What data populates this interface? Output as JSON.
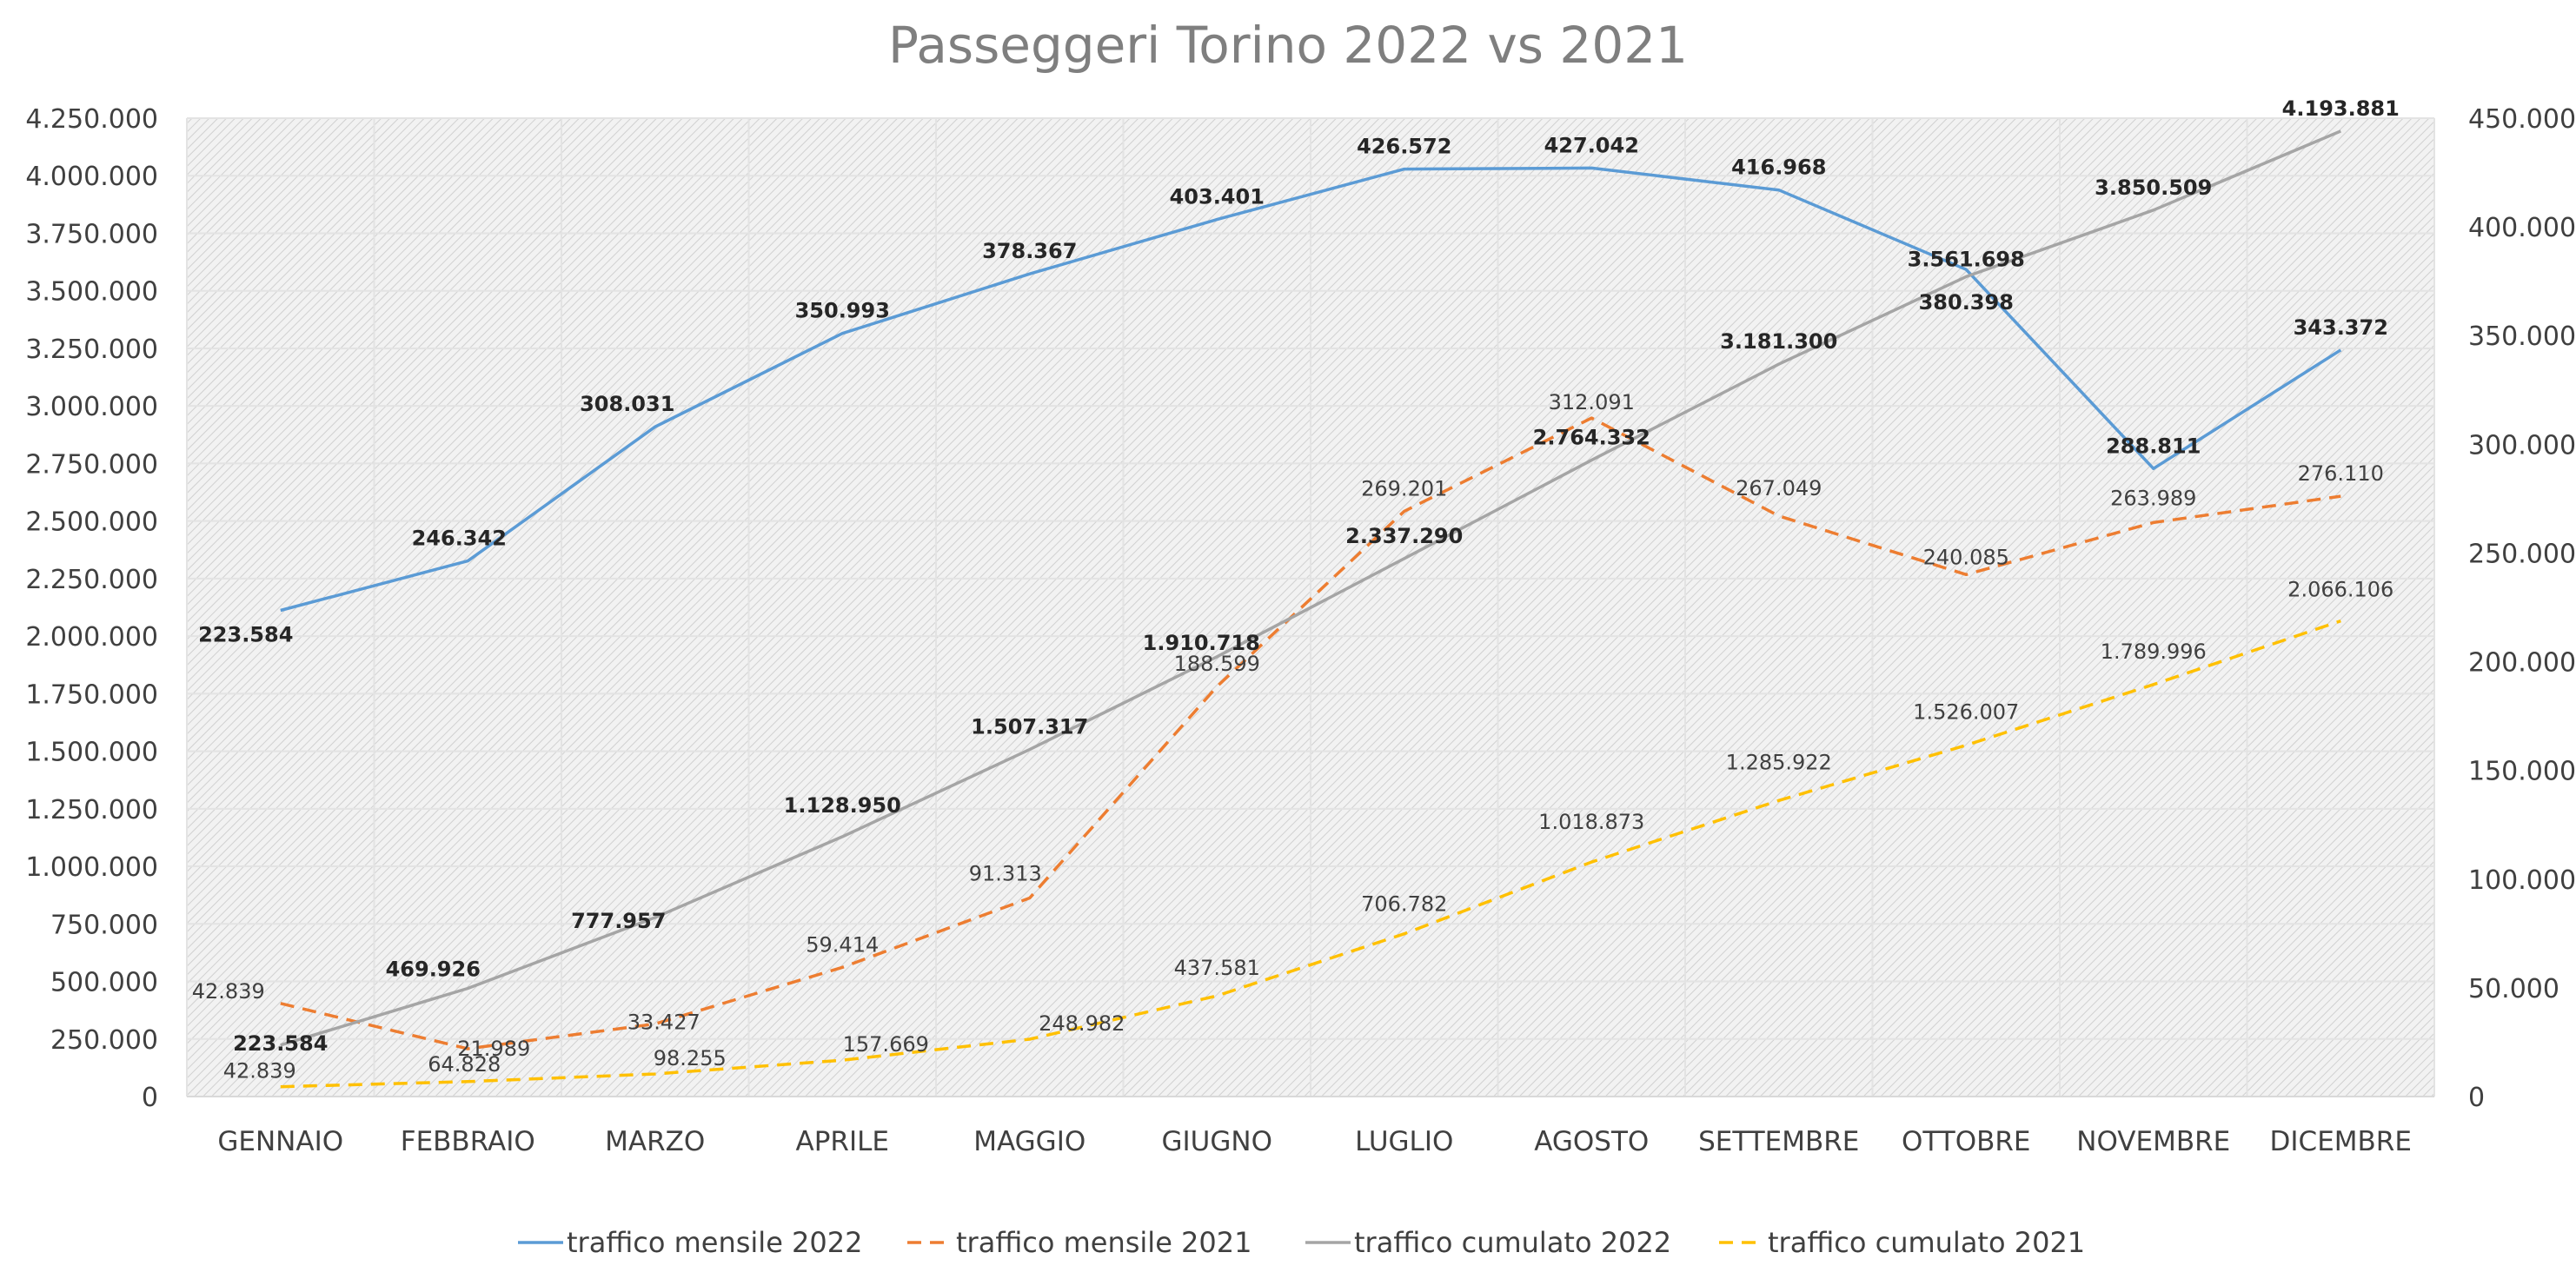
{
  "chart_data": {
    "type": "line",
    "title": "Passeggeri Torino 2022 vs 2021",
    "categories": [
      "GENNAIO",
      "FEBBRAIO",
      "MARZO",
      "APRILE",
      "MAGGIO",
      "GIUGNO",
      "LUGLIO",
      "AGOSTO",
      "SETTEMBRE",
      "OTTOBRE",
      "NOVEMBRE",
      "DICEMBRE"
    ],
    "y_left": {
      "min": 0,
      "max": 4250000,
      "step": 250000,
      "tick_labels": [
        "0",
        "250.000",
        "500.000",
        "750.000",
        "1.000.000",
        "1.250.000",
        "1.500.000",
        "1.750.000",
        "2.000.000",
        "2.250.000",
        "2.500.000",
        "2.750.000",
        "3.000.000",
        "3.250.000",
        "3.500.000",
        "3.750.000",
        "4.000.000",
        "4.250.000"
      ]
    },
    "y_right": {
      "min": 0,
      "max": 450000,
      "step": 50000,
      "tick_labels": [
        "0",
        "50.000",
        "100.000",
        "150.000",
        "200.000",
        "250.000",
        "300.000",
        "350.000",
        "400.000",
        "450.000"
      ]
    },
    "grid": true,
    "legend_position": "bottom",
    "series": [
      {
        "name": "traffico mensile 2022",
        "axis": "right",
        "style": "solid",
        "color": "#5b9bd5",
        "values": [
          223584,
          246342,
          308031,
          350993,
          378367,
          403401,
          426572,
          427042,
          416968,
          380398,
          288811,
          343372
        ],
        "labels": [
          "223.584",
          "246.342",
          "308.031",
          "350.993",
          "378.367",
          "403.401",
          "426.572",
          "427.042",
          "416.968",
          "380.398",
          "288.811",
          "343.372"
        ]
      },
      {
        "name": "traffico mensile 2021",
        "axis": "right",
        "style": "dashed",
        "color": "#ed7d31",
        "values": [
          42839,
          21989,
          33427,
          59414,
          91313,
          188599,
          269201,
          312091,
          267049,
          240085,
          263989,
          276110
        ],
        "labels": [
          "42.839",
          "21.989",
          "33.427",
          "59.414",
          "91.313",
          "188.599",
          "269.201",
          "312.091",
          "267.049",
          "240.085",
          "263.989",
          "276.110"
        ]
      },
      {
        "name": "traffico cumulato 2022",
        "axis": "left",
        "style": "solid",
        "color": "#a5a5a5",
        "values": [
          223584,
          469926,
          777957,
          1128950,
          1507317,
          1910718,
          2337290,
          2764332,
          3181300,
          3561698,
          3850509,
          4193881
        ],
        "labels": [
          "223.584",
          "469.926",
          "777.957",
          "1.128.950",
          "1.507.317",
          "1.910.718",
          "2.337.290",
          "2.764.332",
          "3.181.300",
          "3.561.698",
          "3.850.509",
          "4.193.881"
        ]
      },
      {
        "name": "traffico cumulato 2021",
        "axis": "left",
        "style": "dashed",
        "color": "#ffc000",
        "values": [
          42839,
          64828,
          98255,
          157669,
          248982,
          437581,
          706782,
          1018873,
          1285922,
          1526007,
          1789996,
          2066106
        ],
        "labels": [
          "42.839",
          "64.828",
          "98.255",
          "157.669",
          "248.982",
          "437.581",
          "706.782",
          "1.018.873",
          "1.285.922",
          "1.526.007",
          "1.789.996",
          "2.066.106"
        ]
      }
    ]
  }
}
